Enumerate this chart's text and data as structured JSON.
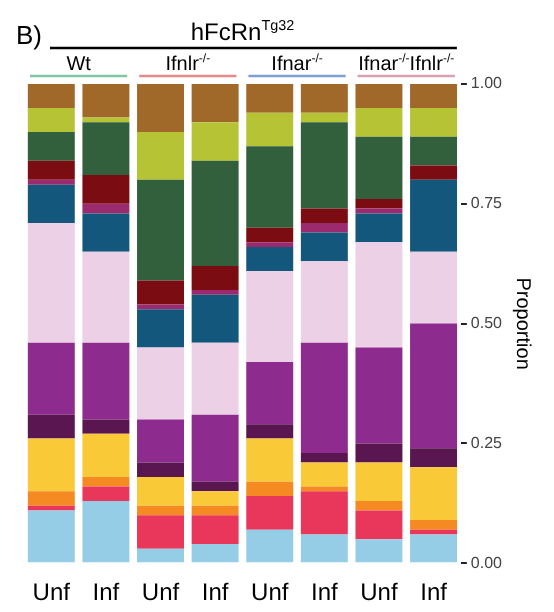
{
  "chart_data": {
    "type": "bar",
    "stacked": true,
    "title": "hFcRn$^{Tg32}$",
    "annotations": [
      "B)",
      "Wt",
      "Ifnlr$^{-/-}$",
      "Ifnar$^{-/-}$",
      "Ifnar$^{-/-}$Ifnlr$^{-/-}$"
    ],
    "ylabel": "Proportion",
    "categories": [
      "Unf",
      "Inf",
      "Unf",
      "Inf",
      "Unf",
      "Inf",
      "Unf",
      "Inf"
    ],
    "series": [
      {
        "color": "#95cde6",
        "values": [
          0.11,
          0.13,
          0.03,
          0.04,
          0.07,
          0.06,
          0.05,
          0.06
        ]
      },
      {
        "color": "#e8375a",
        "values": [
          0.01,
          0.03,
          0.07,
          0.06,
          0.07,
          0.09,
          0.06,
          0.01
        ]
      },
      {
        "color": "#f58a22",
        "values": [
          0.03,
          0.02,
          0.02,
          0.02,
          0.03,
          0.01,
          0.02,
          0.02
        ]
      },
      {
        "color": "#fac937",
        "values": [
          0.11,
          0.09,
          0.06,
          0.03,
          0.09,
          0.05,
          0.08,
          0.11
        ]
      },
      {
        "color": "#5a1650",
        "values": [
          0.05,
          0.03,
          0.03,
          0.02,
          0.03,
          0.02,
          0.04,
          0.04
        ]
      },
      {
        "color": "#8e2b8e",
        "values": [
          0.15,
          0.16,
          0.09,
          0.14,
          0.13,
          0.23,
          0.2,
          0.26
        ]
      },
      {
        "color": "#ecd0e6",
        "values": [
          0.25,
          0.19,
          0.15,
          0.15,
          0.19,
          0.17,
          0.22,
          0.15
        ]
      },
      {
        "color": "#13587c",
        "values": [
          0.08,
          0.08,
          0.08,
          0.1,
          0.05,
          0.06,
          0.06,
          0.15
        ]
      },
      {
        "color": "#9c2a6e",
        "values": [
          0.01,
          0.02,
          0.01,
          0.01,
          0.01,
          0.02,
          0.01,
          null
        ]
      },
      {
        "color": "#7a0c12",
        "values": [
          0.04,
          0.06,
          0.05,
          0.05,
          0.03,
          0.03,
          0.02,
          0.03
        ]
      },
      {
        "color": "#33603c",
        "values": [
          0.06,
          0.11,
          0.21,
          0.22,
          0.17,
          0.18,
          0.13,
          0.06
        ]
      },
      {
        "color": "#b5c334",
        "values": [
          0.05,
          0.01,
          0.1,
          0.08,
          0.07,
          0.02,
          0.06,
          0.06
        ]
      },
      {
        "color": "#a0692a",
        "values": [
          0.05,
          0.07,
          0.1,
          0.08,
          0.06,
          0.06,
          0.05,
          0.05
        ]
      }
    ],
    "ylim": [
      0,
      1
    ],
    "yticks": [
      {
        "value": 0,
        "label": "0.00"
      },
      {
        "value": 0.25,
        "label": "0.25"
      },
      {
        "value": 0.5,
        "label": "0.50"
      },
      {
        "value": 0.75,
        "label": "0.75"
      },
      {
        "value": 1,
        "label": "1.00"
      }
    ],
    "grid": false,
    "legend": false
  }
}
